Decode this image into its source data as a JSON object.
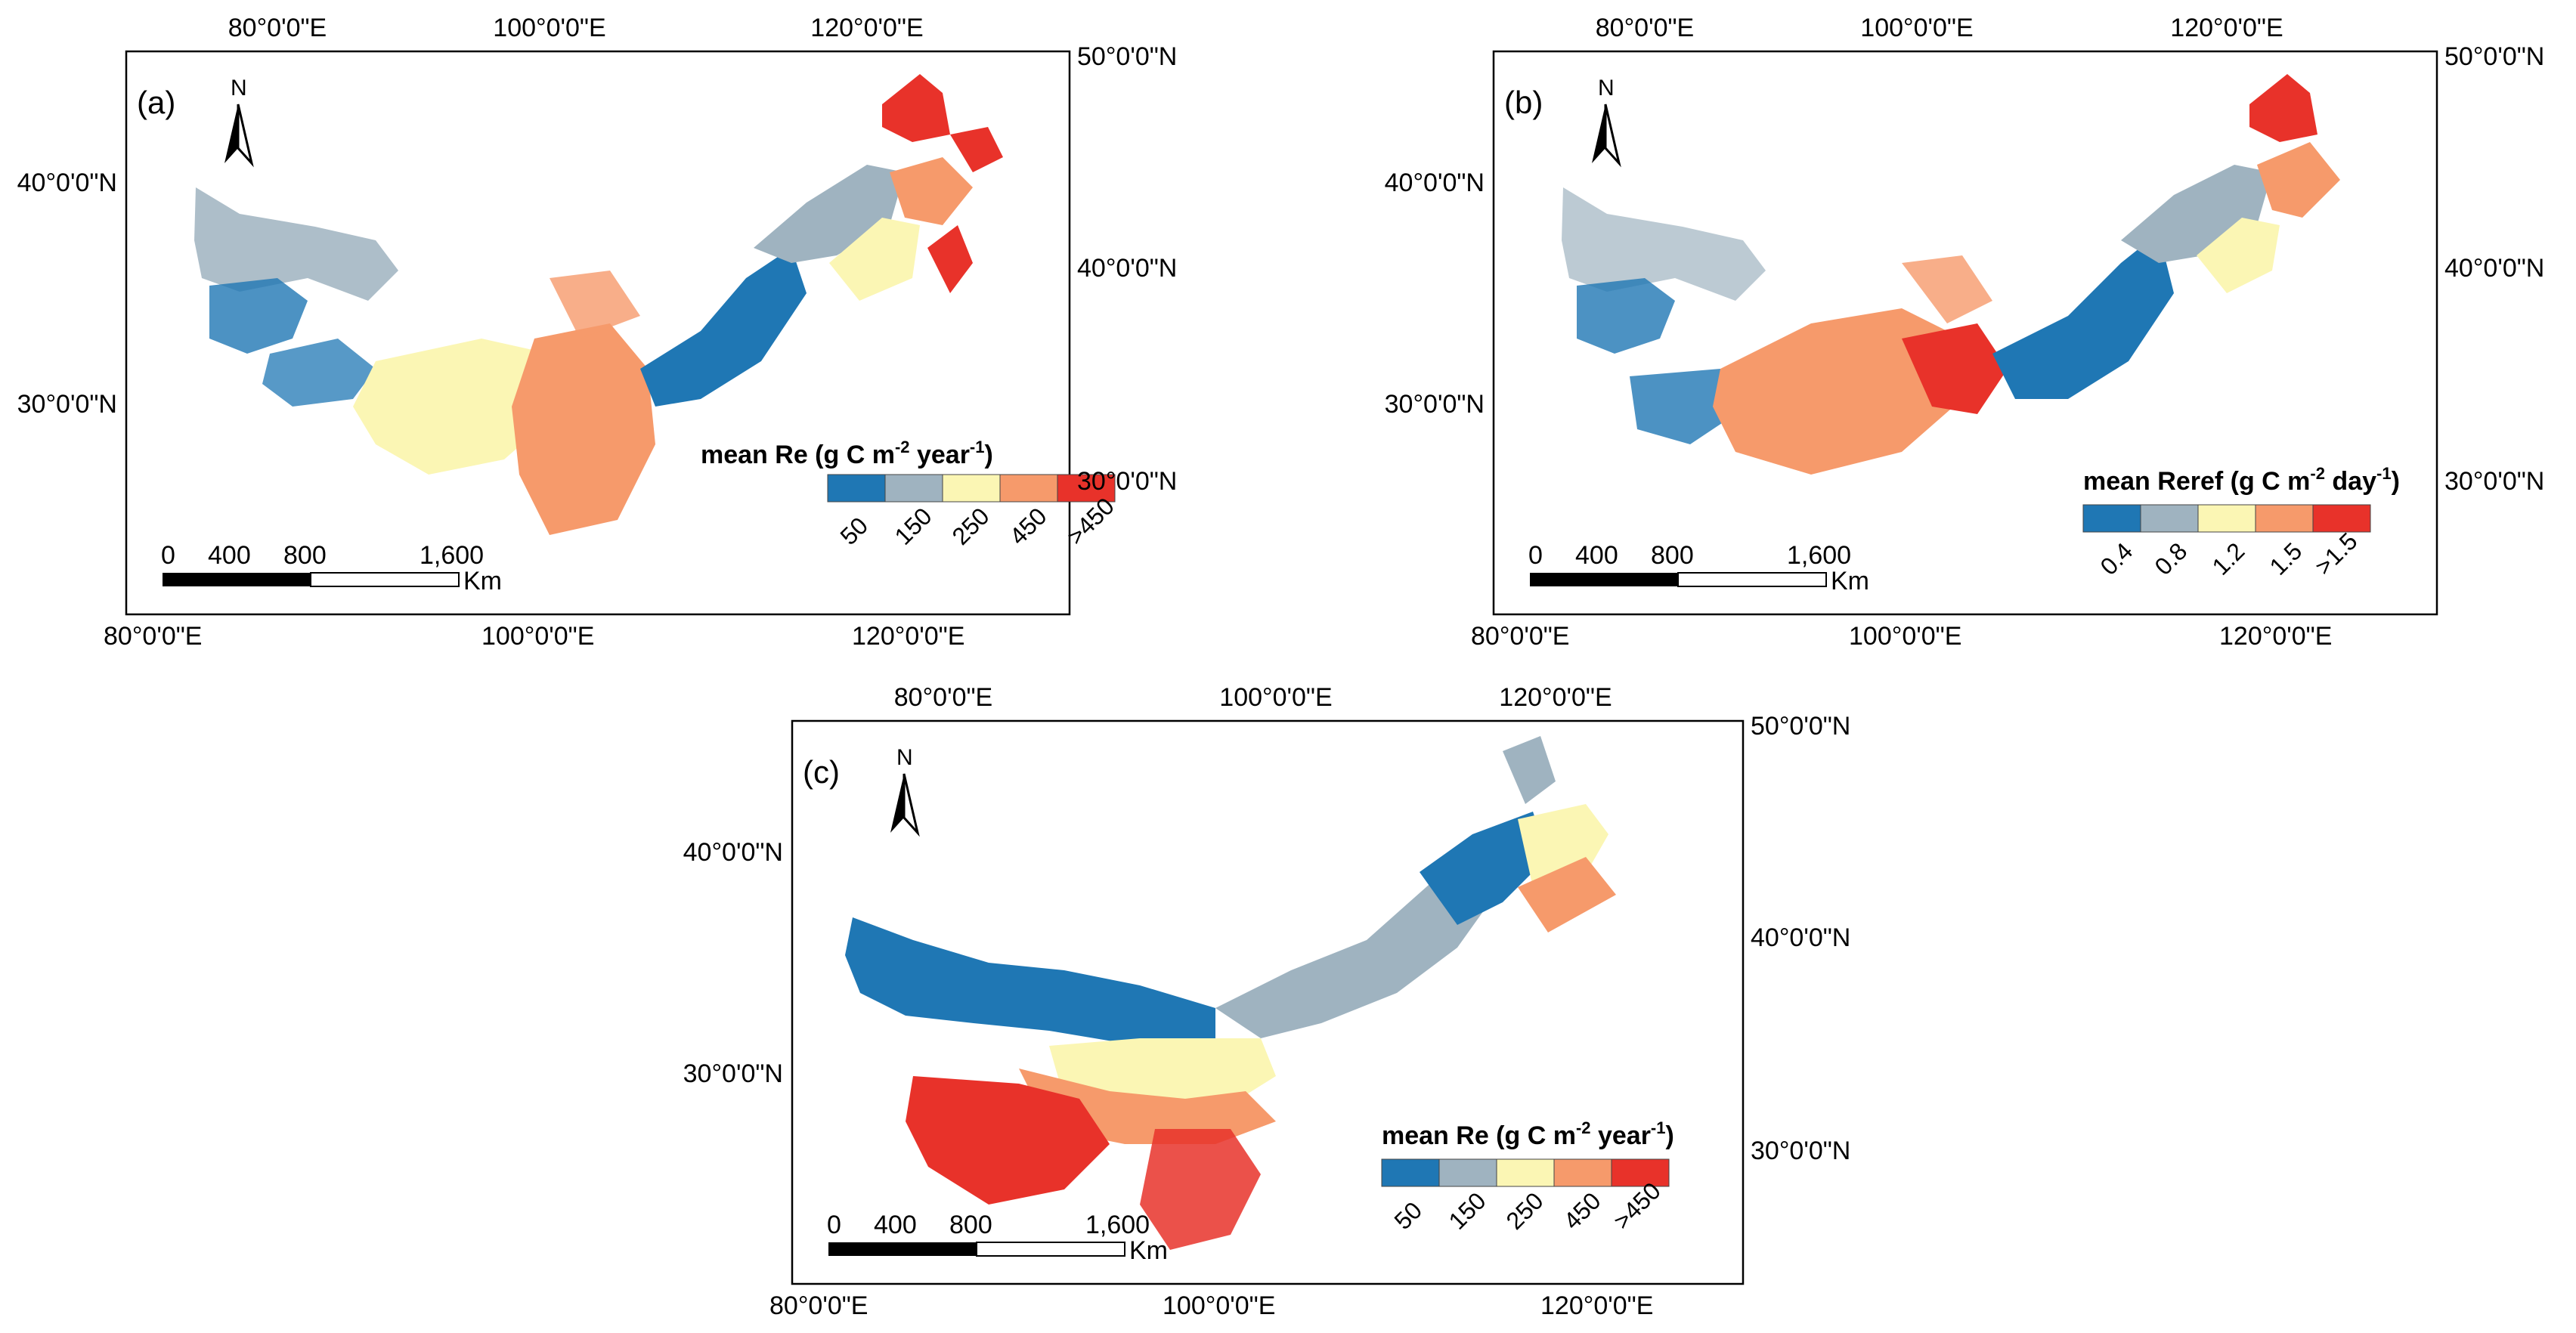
{
  "colors": {
    "c1": "#1f77b4",
    "c2": "#9fb3c0",
    "c3": "#fbf6b4",
    "c4": "#f69a6b",
    "c5": "#e8322a",
    "frame": "#000000"
  },
  "panels": [
    {
      "label": "(a)",
      "north": "N",
      "top_ticks": [
        "80°0'0\"E",
        "100°0'0\"E",
        "120°0'0\"E"
      ],
      "bottom_ticks": [
        "80°0'0\"E",
        "100°0'0\"E",
        "120°0'0\"E"
      ],
      "left_ticks": [
        "40°0'0\"N",
        "30°0'0\"N"
      ],
      "right_ticks": [
        "50°0'0\"N",
        "40°0'0\"N",
        "30°0'0\"N"
      ],
      "legend": {
        "title_pre": "mean Re (g C m",
        "title_sup1": "-2",
        "title_mid": " year",
        "title_sup2": "-1",
        "title_post": ")",
        "classes": [
          "50",
          "150",
          "250",
          "450",
          ">450"
        ]
      },
      "scale": {
        "ticks": [
          "0",
          "400",
          "800",
          "1,600"
        ],
        "unit": "Km"
      }
    },
    {
      "label": "(b)",
      "north": "N",
      "top_ticks": [
        "80°0'0\"E",
        "100°0'0\"E",
        "120°0'0\"E"
      ],
      "bottom_ticks": [
        "80°0'0\"E",
        "100°0'0\"E",
        "120°0'0\"E"
      ],
      "left_ticks": [
        "40°0'0\"N",
        "30°0'0\"N"
      ],
      "right_ticks": [
        "50°0'0\"N",
        "40°0'0\"N",
        "30°0'0\"N"
      ],
      "legend": {
        "title_pre": "mean Reref (g C m",
        "title_sup1": "-2",
        "title_mid": " day",
        "title_sup2": "-1",
        "title_post": ")",
        "classes": [
          "0.4",
          "0.8",
          "1.2",
          "1.5",
          ">1.5"
        ]
      },
      "scale": {
        "ticks": [
          "0",
          "400",
          "800",
          "1,600"
        ],
        "unit": "Km"
      }
    },
    {
      "label": "(c)",
      "north": "N",
      "top_ticks": [
        "80°0'0\"E",
        "100°0'0\"E",
        "120°0'0\"E"
      ],
      "bottom_ticks": [
        "80°0'0\"E",
        "100°0'0\"E",
        "120°0'0\"E"
      ],
      "left_ticks": [
        "40°0'0\"N",
        "30°0'0\"N"
      ],
      "right_ticks": [
        "50°0'0\"N",
        "40°0'0\"N",
        "30°0'0\"N"
      ],
      "legend": {
        "title_pre": "mean Re (g C m",
        "title_sup1": "-2",
        "title_mid": " year",
        "title_sup2": "-1",
        "title_post": ")",
        "classes": [
          "50",
          "150",
          "250",
          "450",
          ">450"
        ]
      },
      "scale": {
        "ticks": [
          "0",
          "400",
          "800",
          "1,600"
        ],
        "unit": "Km"
      }
    }
  ]
}
